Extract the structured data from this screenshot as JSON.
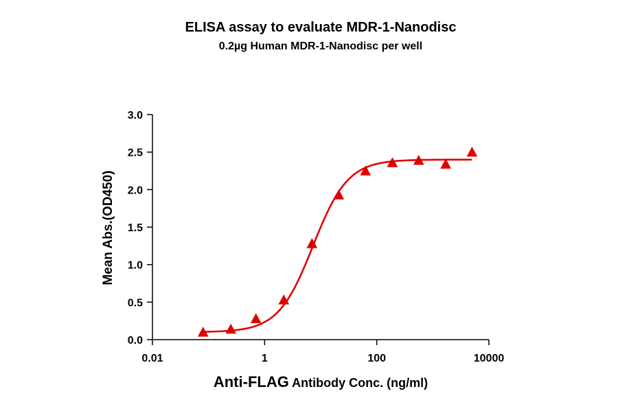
{
  "chart_data": {
    "type": "scatter",
    "title": "ELISA assay to evaluate MDR-1-Nanodisc",
    "subtitle": "0.2µg Human MDR-1-Nanodisc per well",
    "xlabel_prefix": "Anti-FLAG",
    "xlabel_suffix": " Antibody Conc. (ng/ml)",
    "ylabel": "Mean Abs.(OD450)",
    "x_scale": "log",
    "xlim": [
      0.01,
      10000
    ],
    "ylim": [
      0.0,
      3.0
    ],
    "x_ticks": [
      0.01,
      1,
      100,
      10000
    ],
    "x_tick_labels": [
      "0.01",
      "1",
      "100",
      "10000"
    ],
    "y_ticks": [
      0.0,
      0.5,
      1.0,
      1.5,
      2.0,
      2.5,
      3.0
    ],
    "y_tick_labels": [
      "0.0",
      "0.5",
      "1.0",
      "1.5",
      "2.0",
      "2.5",
      "3.0"
    ],
    "grid": false,
    "legend": false,
    "series": [
      {
        "marker": "triangle",
        "color": "#e00000",
        "points": [
          {
            "x": 0.08,
            "y": 0.09
          },
          {
            "x": 0.25,
            "y": 0.13
          },
          {
            "x": 0.7,
            "y": 0.27
          },
          {
            "x": 2.2,
            "y": 0.52
          },
          {
            "x": 7.0,
            "y": 1.27
          },
          {
            "x": 21.0,
            "y": 1.92
          },
          {
            "x": 63.0,
            "y": 2.24
          },
          {
            "x": 190.0,
            "y": 2.35
          },
          {
            "x": 560.0,
            "y": 2.38
          },
          {
            "x": 1700.0,
            "y": 2.33
          },
          {
            "x": 5000.0,
            "y": 2.49
          }
        ]
      }
    ],
    "fit_curve": {
      "color": "#e00000",
      "model": "4PL",
      "bottom": 0.1,
      "top": 2.4,
      "ec50": 7.3,
      "hill": 1.4,
      "x_range": [
        0.08,
        5000
      ]
    }
  }
}
